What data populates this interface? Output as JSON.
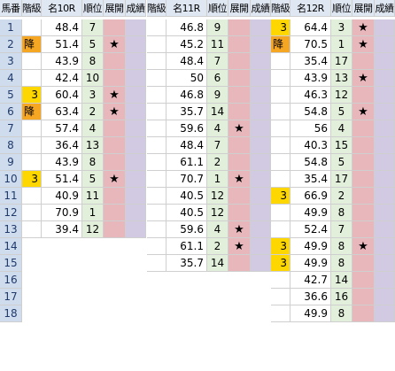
{
  "colors": {
    "header_bg": "#dfe7f3",
    "uma_bg": "#cfdcee",
    "data_bg": "#ffffff",
    "rank_bg": "#e2efda",
    "tenkai_bg": "#e8b7bc",
    "seiseki_bg": "#d2c9e3",
    "kaikyu_yellow": "#ffd700",
    "kaikyu_orange": "#f5a623",
    "grid_line": "#cfcfcf",
    "empty_bg": "#ffffff"
  },
  "headers": {
    "uma": "馬番",
    "races": [
      {
        "kaikyu": "階級",
        "name": "名10R",
        "rank": "順位",
        "tenkai": "展開",
        "seiseki": "成績"
      },
      {
        "kaikyu": "階級",
        "name": "名11R",
        "rank": "順位",
        "tenkai": "展開",
        "seiseki": "成績"
      },
      {
        "kaikyu": "階級",
        "name": "名12R",
        "rank": "順位",
        "tenkai": "展開",
        "seiseki": "成績"
      }
    ]
  },
  "rows": [
    {
      "uma": "1",
      "races": [
        {
          "kaikyu": "",
          "val": "48.4",
          "rank": "7",
          "star": ""
        },
        {
          "kaikyu": "",
          "val": "46.8",
          "rank": "9",
          "star": ""
        },
        {
          "kaikyu": "3",
          "val": "64.4",
          "rank": "3",
          "star": "★"
        }
      ]
    },
    {
      "uma": "2",
      "races": [
        {
          "kaikyu": "降",
          "val": "51.4",
          "rank": "5",
          "star": "★"
        },
        {
          "kaikyu": "",
          "val": "45.2",
          "rank": "11",
          "star": ""
        },
        {
          "kaikyu": "降",
          "val": "70.5",
          "rank": "1",
          "star": "★"
        }
      ]
    },
    {
      "uma": "3",
      "races": [
        {
          "kaikyu": "",
          "val": "43.9",
          "rank": "8",
          "star": ""
        },
        {
          "kaikyu": "",
          "val": "48.4",
          "rank": "7",
          "star": ""
        },
        {
          "kaikyu": "",
          "val": "35.4",
          "rank": "17",
          "star": ""
        }
      ]
    },
    {
      "uma": "4",
      "races": [
        {
          "kaikyu": "",
          "val": "42.4",
          "rank": "10",
          "star": ""
        },
        {
          "kaikyu": "",
          "val": "50",
          "rank": "6",
          "star": ""
        },
        {
          "kaikyu": "",
          "val": "43.9",
          "rank": "13",
          "star": "★"
        }
      ]
    },
    {
      "uma": "5",
      "races": [
        {
          "kaikyu": "3",
          "val": "60.4",
          "rank": "3",
          "star": "★"
        },
        {
          "kaikyu": "",
          "val": "46.8",
          "rank": "9",
          "star": ""
        },
        {
          "kaikyu": "",
          "val": "46.3",
          "rank": "12",
          "star": ""
        }
      ]
    },
    {
      "uma": "6",
      "races": [
        {
          "kaikyu": "降",
          "val": "63.4",
          "rank": "2",
          "star": "★"
        },
        {
          "kaikyu": "",
          "val": "35.7",
          "rank": "14",
          "star": ""
        },
        {
          "kaikyu": "",
          "val": "54.8",
          "rank": "5",
          "star": "★"
        }
      ]
    },
    {
      "uma": "7",
      "races": [
        {
          "kaikyu": "",
          "val": "57.4",
          "rank": "4",
          "star": ""
        },
        {
          "kaikyu": "",
          "val": "59.6",
          "rank": "4",
          "star": "★"
        },
        {
          "kaikyu": "",
          "val": "56",
          "rank": "4",
          "star": ""
        }
      ]
    },
    {
      "uma": "8",
      "races": [
        {
          "kaikyu": "",
          "val": "36.4",
          "rank": "13",
          "star": ""
        },
        {
          "kaikyu": "",
          "val": "48.4",
          "rank": "7",
          "star": ""
        },
        {
          "kaikyu": "",
          "val": "40.3",
          "rank": "15",
          "star": ""
        }
      ]
    },
    {
      "uma": "9",
      "races": [
        {
          "kaikyu": "",
          "val": "43.9",
          "rank": "8",
          "star": ""
        },
        {
          "kaikyu": "",
          "val": "61.1",
          "rank": "2",
          "star": ""
        },
        {
          "kaikyu": "",
          "val": "54.8",
          "rank": "5",
          "star": ""
        }
      ]
    },
    {
      "uma": "10",
      "races": [
        {
          "kaikyu": "3",
          "val": "51.4",
          "rank": "5",
          "star": "★"
        },
        {
          "kaikyu": "",
          "val": "70.7",
          "rank": "1",
          "star": "★"
        },
        {
          "kaikyu": "",
          "val": "35.4",
          "rank": "17",
          "star": ""
        }
      ]
    },
    {
      "uma": "11",
      "races": [
        {
          "kaikyu": "",
          "val": "40.9",
          "rank": "11",
          "star": ""
        },
        {
          "kaikyu": "",
          "val": "40.5",
          "rank": "12",
          "star": ""
        },
        {
          "kaikyu": "3",
          "val": "66.9",
          "rank": "2",
          "star": ""
        }
      ]
    },
    {
      "uma": "12",
      "races": [
        {
          "kaikyu": "",
          "val": "70.9",
          "rank": "1",
          "star": ""
        },
        {
          "kaikyu": "",
          "val": "40.5",
          "rank": "12",
          "star": ""
        },
        {
          "kaikyu": "",
          "val": "49.9",
          "rank": "8",
          "star": ""
        }
      ]
    },
    {
      "uma": "13",
      "races": [
        {
          "kaikyu": "",
          "val": "39.4",
          "rank": "12",
          "star": ""
        },
        {
          "kaikyu": "",
          "val": "59.6",
          "rank": "4",
          "star": "★"
        },
        {
          "kaikyu": "",
          "val": "52.4",
          "rank": "7",
          "star": ""
        }
      ]
    },
    {
      "uma": "14",
      "races": [
        null,
        {
          "kaikyu": "",
          "val": "61.1",
          "rank": "2",
          "star": "★"
        },
        {
          "kaikyu": "3",
          "val": "49.9",
          "rank": "8",
          "star": "★"
        }
      ]
    },
    {
      "uma": "15",
      "races": [
        null,
        {
          "kaikyu": "",
          "val": "35.7",
          "rank": "14",
          "star": ""
        },
        {
          "kaikyu": "3",
          "val": "49.9",
          "rank": "8",
          "star": ""
        }
      ]
    },
    {
      "uma": "16",
      "races": [
        null,
        null,
        {
          "kaikyu": "",
          "val": "42.7",
          "rank": "14",
          "star": ""
        }
      ]
    },
    {
      "uma": "17",
      "races": [
        null,
        null,
        {
          "kaikyu": "",
          "val": "36.6",
          "rank": "16",
          "star": ""
        }
      ]
    },
    {
      "uma": "18",
      "races": [
        null,
        null,
        {
          "kaikyu": "",
          "val": "49.9",
          "rank": "8",
          "star": ""
        }
      ]
    }
  ]
}
